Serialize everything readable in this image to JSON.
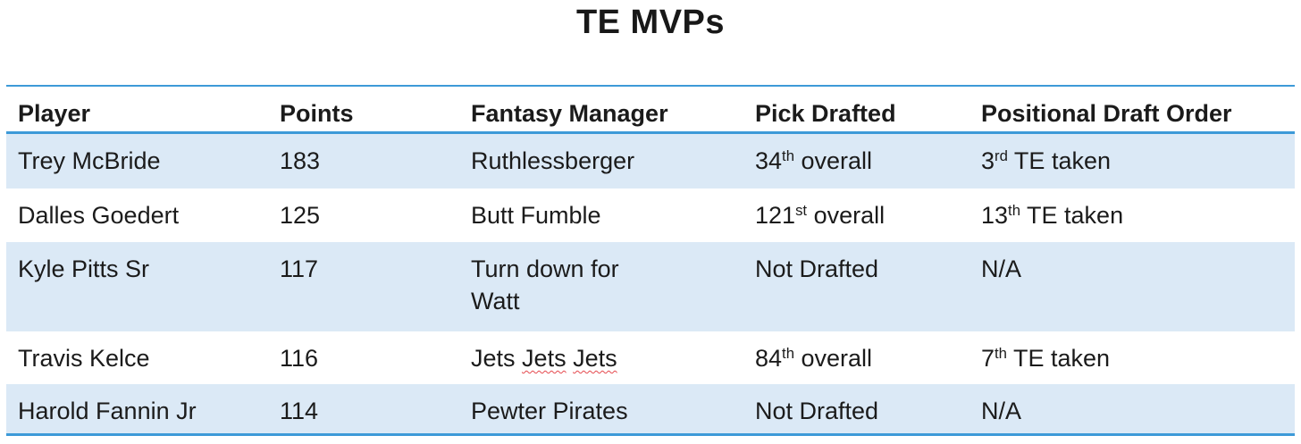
{
  "title": "TE MVPs",
  "colors": {
    "border_blue": "#3d9ad8",
    "band_blue": "#dbe9f6",
    "text": "#1b1b1b",
    "spellcheck_red": "#e5484d"
  },
  "table": {
    "headers": [
      "Player",
      "Points",
      "Fantasy Manager",
      "Pick Drafted",
      "Positional Draft Order"
    ],
    "rows": [
      {
        "player": "Trey McBride",
        "points": "183",
        "manager": "Ruthlessberger",
        "pick": {
          "base": "34",
          "sup": "th",
          "rest": " overall"
        },
        "order": {
          "base": "3",
          "sup": "rd",
          "rest": " TE taken"
        }
      },
      {
        "player": "Dalles Goedert",
        "points": "125",
        "manager": "Butt Fumble",
        "pick": {
          "base": "121",
          "sup": "st",
          "rest": " overall"
        },
        "order": {
          "base": "13",
          "sup": "th",
          "rest": " TE taken"
        }
      },
      {
        "player": "Kyle Pitts Sr",
        "points": "117",
        "manager": "Turn down for\nWatt",
        "pick": {
          "base": "Not Drafted",
          "sup": "",
          "rest": ""
        },
        "order": {
          "base": "N/A",
          "sup": "",
          "rest": ""
        }
      },
      {
        "player": "Travis Kelce",
        "points": "116",
        "manager_words": {
          "w1": "Jets",
          "w2": "Jets",
          "w3": "Jets"
        },
        "pick": {
          "base": "84",
          "sup": "th",
          "rest": " overall"
        },
        "order": {
          "base": "7",
          "sup": "th",
          "rest": " TE taken"
        }
      },
      {
        "player": "Harold Fannin Jr",
        "points": "114",
        "manager": "Pewter Pirates",
        "pick": {
          "base": "Not Drafted",
          "sup": "",
          "rest": ""
        },
        "order": {
          "base": "N/A",
          "sup": "",
          "rest": ""
        }
      }
    ]
  },
  "chart_data": {
    "type": "table",
    "title": "TE MVPs",
    "columns": [
      "Player",
      "Points",
      "Fantasy Manager",
      "Pick Drafted",
      "Positional Draft Order"
    ],
    "rows": [
      [
        "Trey McBride",
        183,
        "Ruthlessberger",
        "34th overall",
        "3rd TE taken"
      ],
      [
        "Dalles Goedert",
        125,
        "Butt Fumble",
        "121st overall",
        "13th TE taken"
      ],
      [
        "Kyle Pitts Sr",
        117,
        "Turn down for Watt",
        "Not Drafted",
        "N/A"
      ],
      [
        "Travis Kelce",
        116,
        "Jets Jets Jets",
        "84th overall",
        "7th TE taken"
      ],
      [
        "Harold Fannin Jr",
        114,
        "Pewter Pirates",
        "Not Drafted",
        "N/A"
      ]
    ],
    "layout": {
      "banded_rows": true,
      "band_color": "#dbe9f6",
      "border_color": "#3d9ad8",
      "header_bold": true
    }
  }
}
